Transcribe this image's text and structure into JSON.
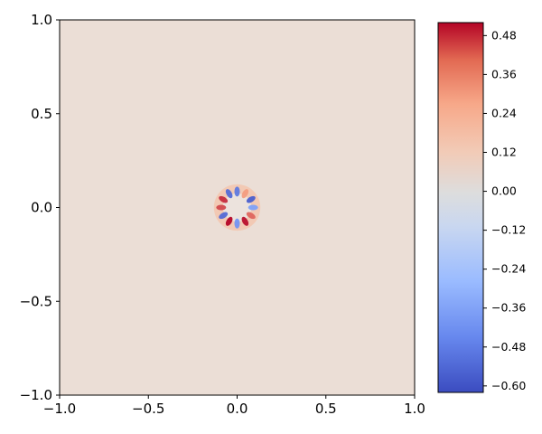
{
  "chart_data": {
    "type": "heatmap",
    "title": "",
    "xlabel": "",
    "ylabel": "",
    "xlim": [
      -1.0,
      1.0
    ],
    "ylim": [
      -1.0,
      1.0
    ],
    "x_ticks": [
      "−1.0",
      "−0.5",
      "0.0",
      "0.5",
      "1.0"
    ],
    "x_tick_values": [
      -1.0,
      -0.5,
      0.0,
      0.5,
      1.0
    ],
    "y_ticks": [
      "−1.0",
      "−0.5",
      "0.0",
      "0.5",
      "1.0"
    ],
    "y_tick_values": [
      -1.0,
      -0.5,
      0.0,
      0.5,
      1.0
    ],
    "colormap": "coolwarm",
    "background_value": 0.02,
    "feature": {
      "description_value_range": [
        -0.6,
        0.52
      ],
      "center": [
        0.0,
        0.0
      ],
      "ring_radius": 0.09,
      "lobes": [
        {
          "angle_deg": 90,
          "value": -0.45
        },
        {
          "angle_deg": 60,
          "value": 0.25
        },
        {
          "angle_deg": 30,
          "value": -0.55
        },
        {
          "angle_deg": 0,
          "value": -0.3
        },
        {
          "angle_deg": -30,
          "value": 0.35
        },
        {
          "angle_deg": -60,
          "value": 0.5
        },
        {
          "angle_deg": -90,
          "value": -0.35
        },
        {
          "angle_deg": -120,
          "value": 0.52
        },
        {
          "angle_deg": -150,
          "value": -0.5
        },
        {
          "angle_deg": 180,
          "value": 0.4
        },
        {
          "angle_deg": 150,
          "value": 0.45
        },
        {
          "angle_deg": 120,
          "value": -0.5
        }
      ]
    },
    "colorbar": {
      "range": [
        -0.62,
        0.52
      ],
      "ticks": [
        "0.48",
        "0.36",
        "0.24",
        "0.12",
        "0.00",
        "−0.12",
        "−0.24",
        "−0.36",
        "−0.48",
        "−0.60"
      ],
      "tick_values": [
        0.48,
        0.36,
        0.24,
        0.12,
        0.0,
        -0.12,
        -0.24,
        -0.36,
        -0.48,
        -0.6
      ]
    },
    "grid": false,
    "colors": {
      "background_field": "#ebded6",
      "cmap_low": "#3b4cc0",
      "cmap_mid": "#dddddd",
      "cmap_high": "#b40426"
    }
  }
}
